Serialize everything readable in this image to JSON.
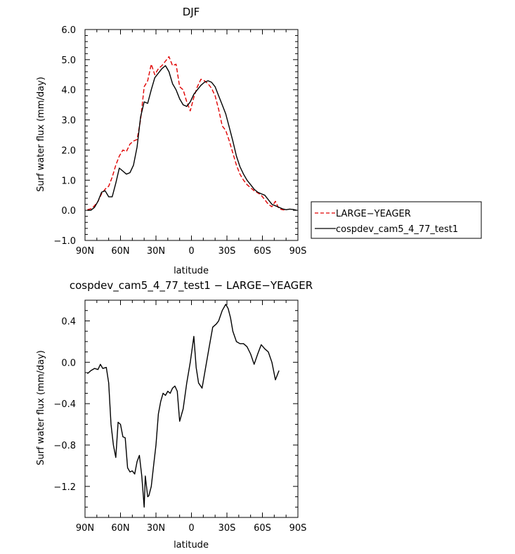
{
  "chart_data": [
    {
      "type": "line",
      "title": "DJF",
      "xlabel": "latitude",
      "ylabel": "Surf water flux (mm/day)",
      "xlim": [
        90,
        -90
      ],
      "ylim": [
        -1.0,
        6.0
      ],
      "xticks": [
        90,
        60,
        30,
        0,
        -30,
        -60,
        -90
      ],
      "xtick_labels": [
        "90N",
        "60N",
        "30N",
        "0",
        "30S",
        "60S",
        "90S"
      ],
      "yticks": [
        -1,
        0,
        1,
        2,
        3,
        4,
        5,
        6
      ],
      "ytick_labels": [
        "−1.0",
        "0.0",
        "1.0",
        "2.0",
        "3.0",
        "4.0",
        "5.0",
        "6.0"
      ],
      "legend_position": "right",
      "series": [
        {
          "name": "LARGE−YEAGER",
          "color": "#e00000",
          "dash": "dashed",
          "x": [
            88,
            85,
            82,
            79,
            76,
            73,
            70,
            67,
            64,
            61,
            58,
            55,
            52,
            49,
            46,
            43,
            40,
            37,
            34,
            31,
            28,
            25,
            22,
            19,
            16,
            13,
            10,
            7,
            4,
            1,
            -2,
            -5,
            -8,
            -11,
            -14,
            -17,
            -20,
            -23,
            -26,
            -29,
            -32,
            -35,
            -38,
            -41,
            -44,
            -47,
            -50,
            -53,
            -56,
            -59,
            -62,
            -65,
            -68,
            -71,
            -74,
            -77,
            -80
          ],
          "y": [
            0.02,
            0.05,
            0.15,
            0.3,
            0.55,
            0.7,
            0.8,
            1.1,
            1.5,
            1.8,
            2.0,
            1.95,
            2.2,
            2.3,
            2.35,
            3.0,
            4.1,
            4.3,
            4.85,
            4.5,
            4.7,
            4.8,
            4.95,
            5.1,
            4.8,
            4.85,
            4.1,
            4.0,
            3.6,
            3.3,
            3.75,
            4.1,
            4.35,
            4.3,
            4.2,
            4.05,
            3.8,
            3.35,
            2.8,
            2.65,
            2.3,
            1.9,
            1.5,
            1.2,
            1.0,
            0.85,
            0.75,
            0.65,
            0.58,
            0.5,
            0.35,
            0.2,
            0.12,
            0.3,
            0.05,
            0.02,
            0.0
          ]
        },
        {
          "name": "cospdev_cam5_4_77_test1",
          "color": "#000000",
          "dash": "solid",
          "x": [
            88,
            85,
            82,
            79,
            76,
            73,
            70,
            67,
            64,
            61,
            58,
            55,
            52,
            49,
            46,
            43,
            40,
            37,
            34,
            31,
            28,
            25,
            22,
            19,
            16,
            13,
            10,
            7,
            4,
            1,
            -2,
            -5,
            -8,
            -11,
            -14,
            -17,
            -20,
            -23,
            -26,
            -29,
            -32,
            -35,
            -38,
            -41,
            -44,
            -47,
            -50,
            -53,
            -56,
            -59,
            -62,
            -65,
            -68,
            -71,
            -74,
            -77,
            -80,
            -83,
            -86,
            -89
          ],
          "y": [
            0.0,
            0.0,
            0.1,
            0.3,
            0.6,
            0.65,
            0.45,
            0.45,
            0.9,
            1.4,
            1.3,
            1.2,
            1.25,
            1.5,
            2.1,
            3.1,
            3.6,
            3.55,
            4.0,
            4.4,
            4.55,
            4.7,
            4.8,
            4.6,
            4.2,
            4.0,
            3.7,
            3.5,
            3.45,
            3.6,
            3.85,
            4.0,
            4.15,
            4.25,
            4.3,
            4.25,
            4.1,
            3.8,
            3.5,
            3.2,
            2.75,
            2.3,
            1.8,
            1.45,
            1.2,
            1.0,
            0.85,
            0.7,
            0.6,
            0.55,
            0.5,
            0.35,
            0.2,
            0.15,
            0.1,
            0.05,
            0.02,
            0.04,
            0.03,
            0.0
          ]
        }
      ]
    },
    {
      "type": "line",
      "title": "cospdev_cam5_4_77_test1 − LARGE−YEAGER",
      "xlabel": "latitude",
      "ylabel": "Surf water flux (mm/day)",
      "xlim": [
        90,
        -90
      ],
      "ylim": [
        -1.5,
        0.6
      ],
      "xticks": [
        90,
        60,
        30,
        0,
        -30,
        -60,
        -90
      ],
      "xtick_labels": [
        "90N",
        "60N",
        "30N",
        "0",
        "30S",
        "60S",
        "90S"
      ],
      "yticks": [
        -1.2,
        -0.8,
        -0.4,
        0.0,
        0.4
      ],
      "ytick_labels": [
        "−1.2",
        "−0.8",
        "−0.4",
        "0.0",
        "0.4"
      ],
      "series": [
        {
          "name": "",
          "color": "#000000",
          "dash": "solid",
          "x": [
            88,
            85,
            82,
            79,
            77,
            75,
            72,
            70,
            68,
            66,
            64,
            62,
            60,
            58,
            56,
            54,
            52,
            50,
            48,
            46,
            44,
            42,
            40,
            39,
            37,
            36,
            34,
            32,
            30,
            28,
            26,
            24,
            22,
            20,
            18,
            16,
            14,
            12,
            10,
            7,
            4,
            1,
            -2,
            -4,
            -6,
            -9,
            -12,
            -15,
            -18,
            -21,
            -23,
            -26,
            -29,
            -31,
            -33,
            -35,
            -38,
            -41,
            -44,
            -47,
            -50,
            -53,
            -56,
            -59,
            -62,
            -65,
            -68,
            -71,
            -74,
            -77,
            -80
          ],
          "y": [
            -0.11,
            -0.08,
            -0.06,
            -0.07,
            -0.02,
            -0.06,
            -0.05,
            -0.2,
            -0.6,
            -0.8,
            -0.92,
            -0.58,
            -0.6,
            -0.72,
            -0.73,
            -1.02,
            -1.06,
            -1.05,
            -1.08,
            -0.96,
            -0.9,
            -1.1,
            -1.4,
            -1.1,
            -1.3,
            -1.29,
            -1.2,
            -1.0,
            -0.8,
            -0.5,
            -0.38,
            -0.3,
            -0.32,
            -0.28,
            -0.3,
            -0.25,
            -0.23,
            -0.28,
            -0.57,
            -0.45,
            -0.2,
            0.0,
            0.25,
            -0.05,
            -0.2,
            -0.25,
            -0.05,
            0.15,
            0.34,
            0.37,
            0.4,
            0.5,
            0.56,
            0.52,
            0.43,
            0.3,
            0.2,
            0.18,
            0.18,
            0.15,
            0.08,
            -0.02,
            0.08,
            0.17,
            0.13,
            0.1,
            0.0,
            -0.17,
            -0.08,
            null,
            null
          ]
        }
      ]
    }
  ]
}
